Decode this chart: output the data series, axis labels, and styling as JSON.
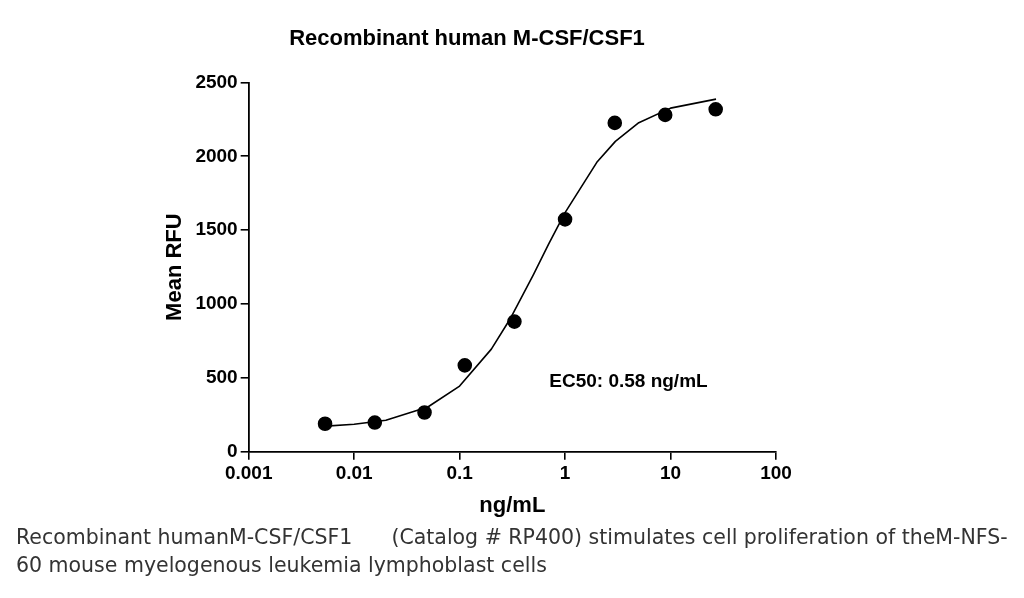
{
  "chart_data": {
    "type": "scatter",
    "title": "Recombinant human M-CSF/CSF1",
    "xlabel": "ng/mL",
    "ylabel": "Mean RFU",
    "log": "x",
    "grid": false,
    "xlim": [
      0.001,
      100
    ],
    "xticks": [
      0.001,
      0.01,
      0.1,
      1,
      10,
      100
    ],
    "ylim": [
      0,
      2500
    ],
    "yticks": [
      0,
      500,
      1000,
      1500,
      2000,
      2500
    ],
    "series": [
      {
        "type": "scatter",
        "marker": "circle",
        "color": "#000000",
        "x": [
          0.0053,
          0.0157,
          0.0465,
          0.112,
          0.331,
          1.0,
          2.96,
          8.9,
          26.8
        ],
        "values": [
          190,
          198,
          266,
          585,
          881,
          1573,
          2226,
          2280,
          2318
        ]
      },
      {
        "type": "line",
        "marker": "none",
        "color": "#000000",
        "x": [
          0.005,
          0.01,
          0.02,
          0.05,
          0.1,
          0.2,
          0.3,
          0.5,
          0.7,
          1,
          2,
          3,
          5,
          10,
          27
        ],
        "values": [
          172,
          186,
          214,
          303,
          445,
          695,
          897,
          1198,
          1407,
          1619,
          1959,
          2101,
          2227,
          2326,
          2387
        ]
      }
    ],
    "annotations": [
      "EC50: 0.58 ng/mL",
      "Recombinant humanM-CSF/CSF1      (Catalog # RP400) stimulates cell proliferation of theM-NFS-60 mouse myelogenous leukemia lymphoblast cells"
    ]
  }
}
